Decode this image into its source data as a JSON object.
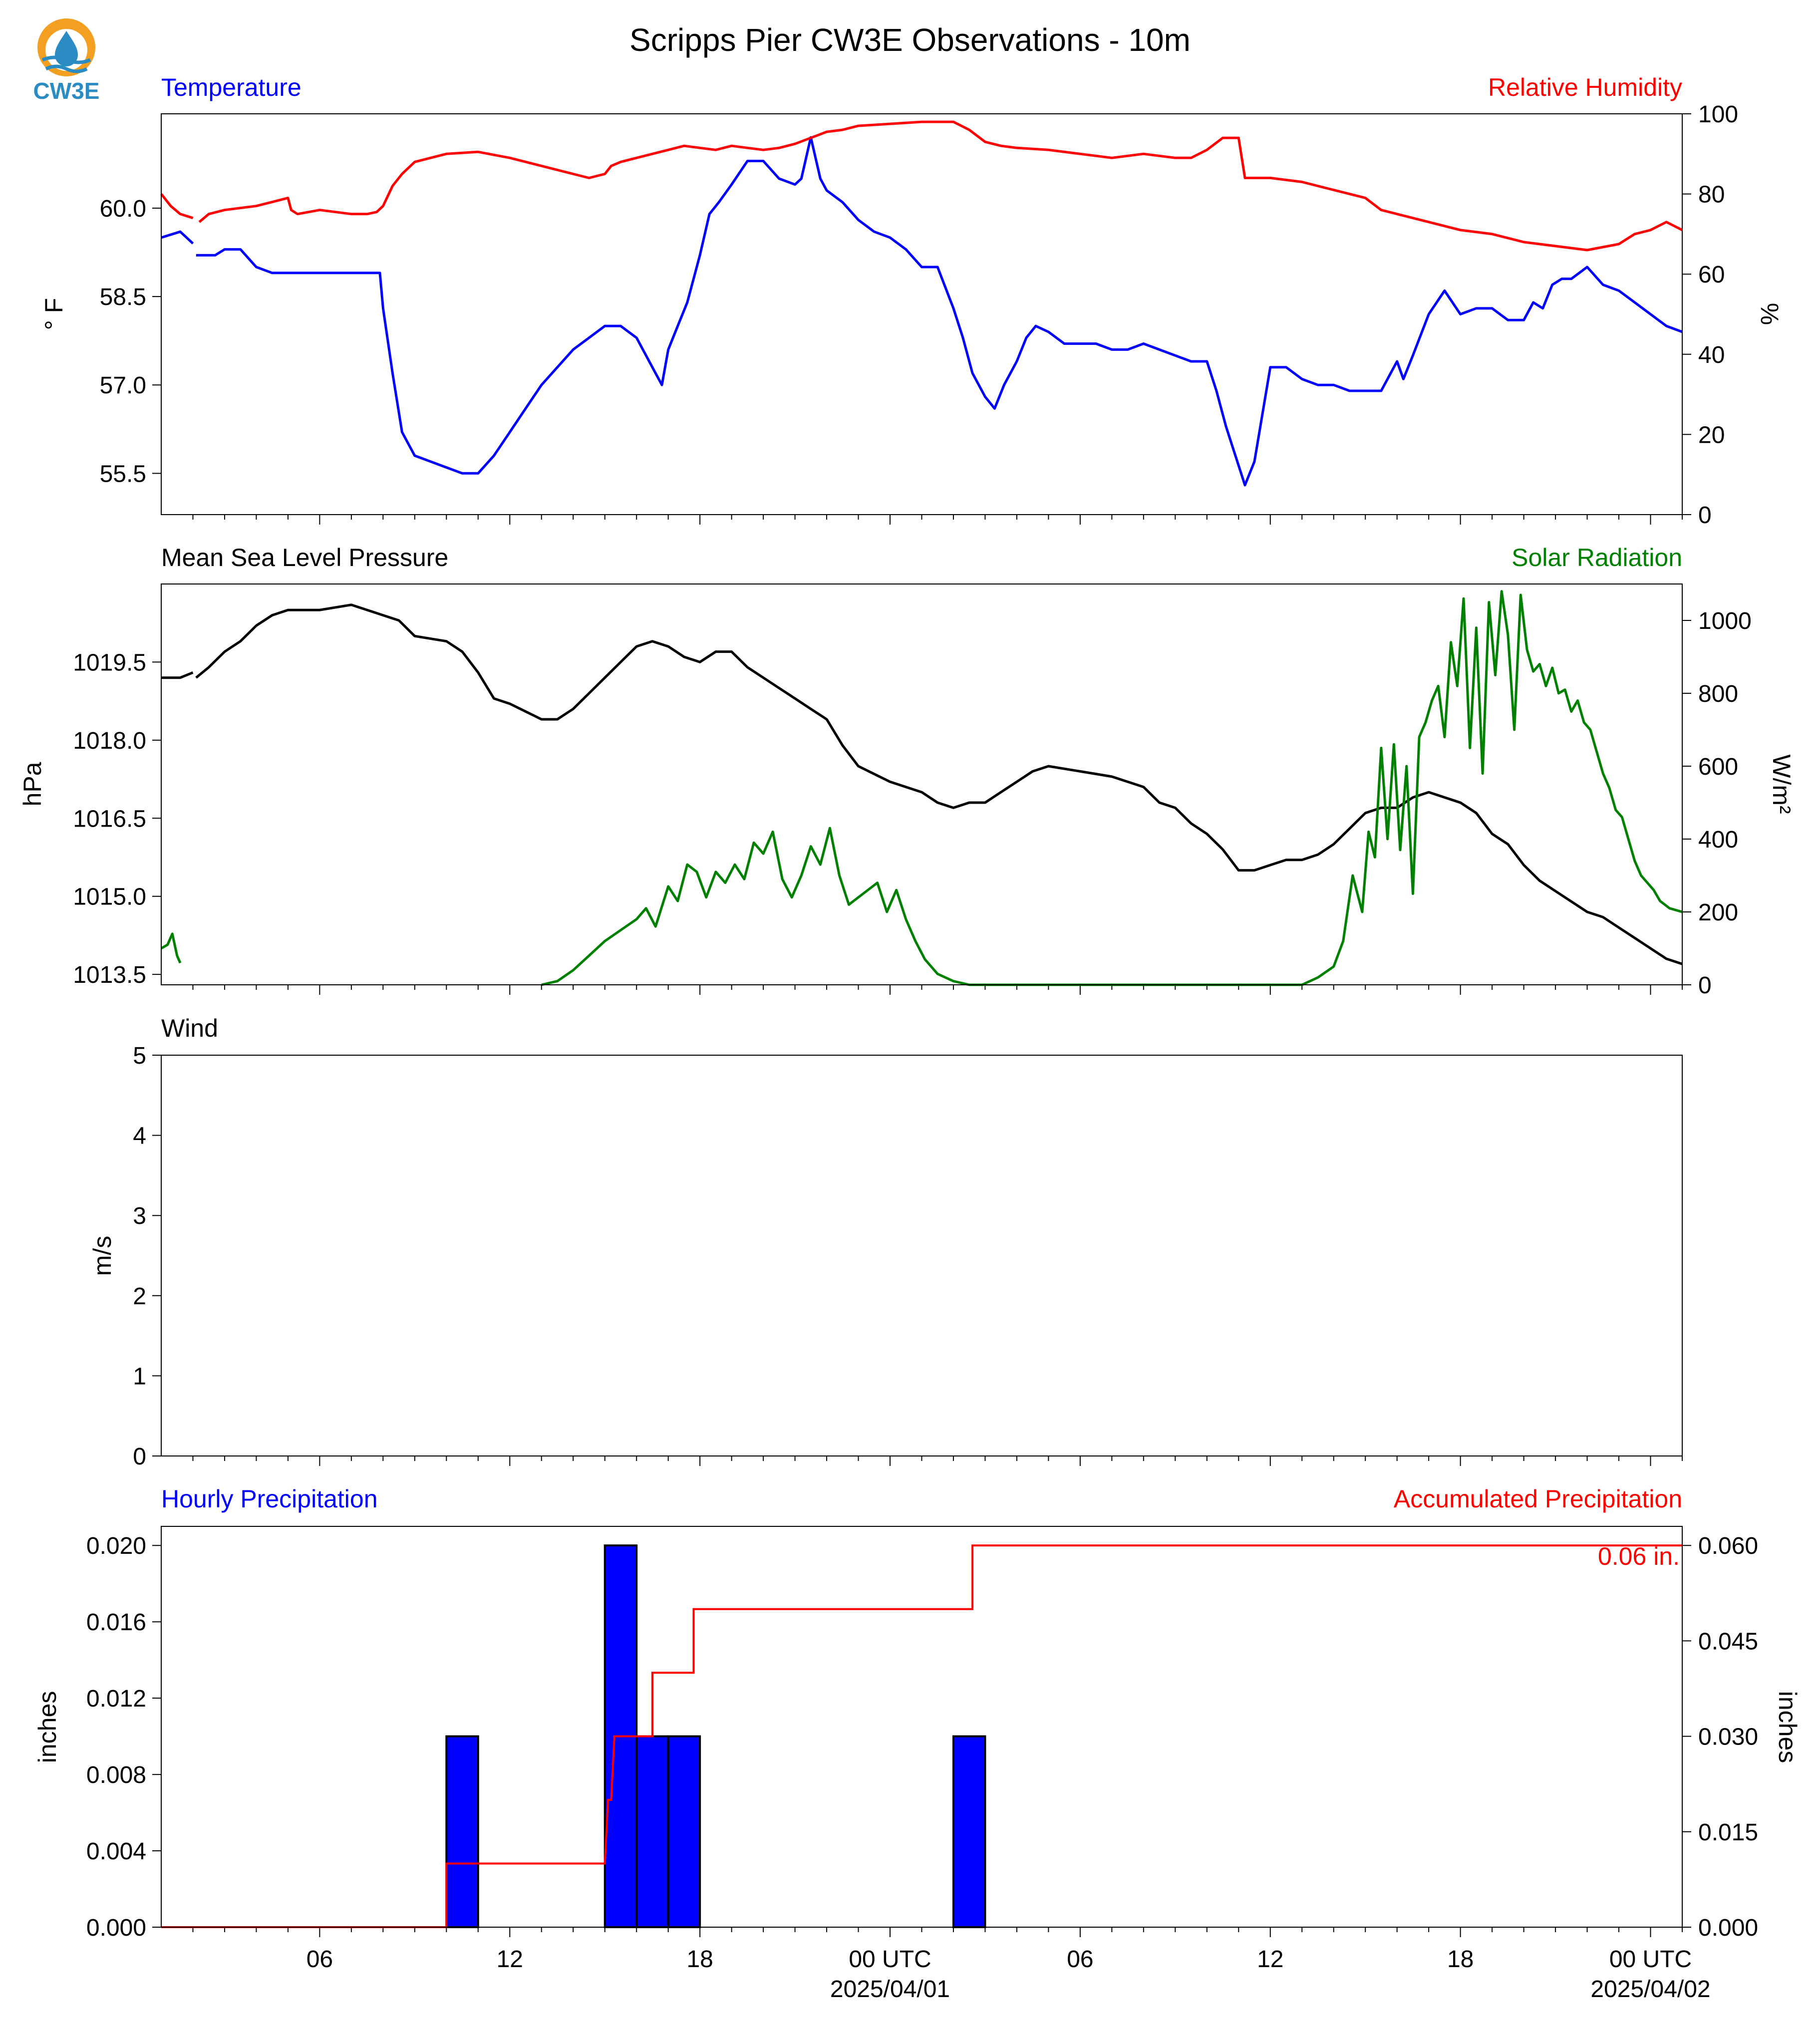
{
  "title": "Scripps Pier CW3E Observations - 10m",
  "logo": {
    "name": "cw3e-logo-icon",
    "text": "CW3E"
  },
  "colors": {
    "blue": "#0000ff",
    "red": "#ff0000",
    "green": "#008000",
    "black": "#000000",
    "logo_orange": "#f3a022",
    "logo_blue": "#2b8cc4"
  },
  "x_axis": {
    "start": "2025-03-31T01:00Z",
    "end": "2025-04-02T01:00Z",
    "tick_labels": [
      "06",
      "12",
      "18",
      "00 UTC",
      "06",
      "12",
      "18",
      "00 UTC"
    ],
    "date_labels": [
      "2025/04/01",
      "2025/04/02"
    ]
  },
  "chart_data": [
    {
      "type": "line",
      "title_left": "Temperature",
      "title_right": "Relative Humidity",
      "ylabel_left": "° F",
      "ylabel_right": "%",
      "ylim_left": [
        54.8,
        61.6
      ],
      "ylim_right": [
        0,
        100
      ],
      "yticks_left": [
        "60.0",
        "58.5",
        "57.0",
        "55.5"
      ],
      "yticks_right": [
        "100",
        "80",
        "60",
        "40",
        "20",
        "0"
      ],
      "series": [
        {
          "name": "Temperature",
          "color": "#0000ff",
          "axis": "left",
          "x": [
            0,
            0.6,
            1.0,
            1.05,
            1.1,
            1.3,
            1.5,
            1.7,
            2.0,
            2.2,
            2.5,
            3.0,
            3.5,
            4.0,
            5.0,
            5.5,
            6.0,
            6.5,
            6.9,
            7.0,
            7.3,
            7.6,
            8.0,
            8.5,
            9.0,
            9.5,
            10.0,
            10.5,
            11.0,
            11.5,
            12.0,
            12.5,
            13.0,
            13.5,
            14.0,
            14.5,
            15.0,
            15.5,
            15.8,
            16.0,
            16.3,
            16.6,
            17.0,
            17.3,
            17.6,
            18.0,
            18.5,
            19.0,
            19.5,
            20.0,
            20.2,
            20.5,
            20.8,
            21.0,
            21.5,
            22.0,
            22.5,
            23.0,
            23.5,
            24.0,
            24.5,
            25.0,
            25.3,
            25.6,
            26.0,
            26.3,
            26.6,
            27.0,
            27.3,
            27.6,
            28.0,
            28.5,
            29.0,
            29.5,
            30.0,
            30.5,
            31.0,
            31.5,
            32.0,
            32.5,
            33.0,
            33.3,
            33.6,
            33.9,
            34.2,
            34.5,
            35.0,
            35.5,
            36.0,
            36.5,
            37.0,
            37.5,
            38.0,
            38.5,
            38.8,
            39.0,
            39.2,
            39.5,
            40.0,
            40.5,
            41.0,
            41.5,
            42.0,
            42.5,
            43.0,
            43.3,
            43.6,
            43.9,
            44.2,
            44.5,
            45.0,
            45.5,
            46.0,
            46.5,
            47.0,
            47.5,
            48.0
          ],
          "values": [
            59.5,
            59.6,
            59.4,
            null,
            59.2,
            59.2,
            59.2,
            59.2,
            59.3,
            59.3,
            59.3,
            59.0,
            58.9,
            58.9,
            58.9,
            58.9,
            58.9,
            58.9,
            58.9,
            58.3,
            57.2,
            56.2,
            55.8,
            55.7,
            55.6,
            55.5,
            55.5,
            55.8,
            56.2,
            56.6,
            57.0,
            57.3,
            57.6,
            57.8,
            58.0,
            58.0,
            57.8,
            57.3,
            57.0,
            57.6,
            58.0,
            58.4,
            59.2,
            59.9,
            60.1,
            60.4,
            60.8,
            60.8,
            60.5,
            60.4,
            60.5,
            61.2,
            60.5,
            60.3,
            60.1,
            59.8,
            59.6,
            59.5,
            59.3,
            59.0,
            59.0,
            58.3,
            57.8,
            57.2,
            56.8,
            56.6,
            57.0,
            57.4,
            57.8,
            58.0,
            57.9,
            57.7,
            57.7,
            57.7,
            57.6,
            57.6,
            57.7,
            57.6,
            57.5,
            57.4,
            57.4,
            56.9,
            56.3,
            55.8,
            55.3,
            55.7,
            57.3,
            57.3,
            57.1,
            57.0,
            57.0,
            56.9,
            56.9,
            56.9,
            57.2,
            57.4,
            57.1,
            57.5,
            58.2,
            58.6,
            58.2,
            58.3,
            58.3,
            58.1,
            58.1,
            58.4,
            58.3,
            58.7,
            58.8,
            58.8,
            59.0,
            58.7,
            58.6,
            58.4,
            58.2,
            58.0,
            57.9
          ]
        },
        {
          "name": "Relative Humidity",
          "color": "#ff0000",
          "axis": "right",
          "x": [
            0,
            0.3,
            0.6,
            1.0,
            1.1,
            1.2,
            1.5,
            2.0,
            3.0,
            3.5,
            4.0,
            4.1,
            4.3,
            5.0,
            6.0,
            6.5,
            6.8,
            7.0,
            7.3,
            7.6,
            8.0,
            8.5,
            9.0,
            10.0,
            11.0,
            12.0,
            13.0,
            13.5,
            14.0,
            14.2,
            14.5,
            15.0,
            15.5,
            16.0,
            16.5,
            17.0,
            17.5,
            18.0,
            18.5,
            19.0,
            19.5,
            20.0,
            20.5,
            21.0,
            21.5,
            22.0,
            23.0,
            24.0,
            25.0,
            25.5,
            26.0,
            26.5,
            27.0,
            28.0,
            29.0,
            30.0,
            31.0,
            32.0,
            32.5,
            33.0,
            33.5,
            34.0,
            34.2,
            34.4,
            35.0,
            36.0,
            37.0,
            37.5,
            38.0,
            38.5,
            39.0,
            39.5,
            40.0,
            41.0,
            42.0,
            43.0,
            44.0,
            45.0,
            46.0,
            46.5,
            47.0,
            47.5,
            48.0
          ],
          "values": [
            80,
            77,
            75,
            74,
            null,
            73,
            75,
            76,
            77,
            78,
            79,
            76,
            75,
            76,
            75,
            75,
            75.5,
            77,
            82,
            85,
            88,
            89,
            90,
            90.5,
            89,
            87,
            85,
            84,
            85,
            87,
            88,
            89,
            90,
            91,
            92,
            91.5,
            91,
            92,
            91.5,
            91,
            91.5,
            92.5,
            94,
            95.5,
            96,
            97,
            97.5,
            98,
            98,
            96,
            93,
            92,
            91.5,
            91,
            90,
            89,
            90,
            89,
            89,
            91,
            94,
            94,
            84,
            84,
            84,
            83,
            81,
            80,
            79,
            76,
            75,
            74,
            73,
            71,
            70,
            68,
            67,
            66,
            67.5,
            70,
            71,
            73,
            71
          ]
        }
      ]
    },
    {
      "type": "line",
      "title_left": "Mean Sea Level Pressure",
      "title_right": "Solar Radiation",
      "ylabel_left": "hPa",
      "ylabel_right": "W/m²",
      "ylim_left": [
        1013.3,
        1021.0
      ],
      "ylim_right": [
        0,
        1100
      ],
      "yticks_left": [
        "1019.5",
        "1018.0",
        "1016.5",
        "1015.0",
        "1013.5"
      ],
      "yticks_right": [
        "1000",
        "800",
        "600",
        "400",
        "200",
        "0"
      ],
      "series": [
        {
          "name": "Mean Sea Level Pressure",
          "color": "#000000",
          "axis": "left",
          "x": [
            0,
            0.6,
            1.0,
            1.05,
            1.1,
            1.5,
            2.0,
            2.5,
            3.0,
            3.5,
            4.0,
            5.0,
            6.0,
            7.0,
            7.5,
            8.0,
            9.0,
            9.5,
            10.0,
            10.5,
            11.0,
            12.0,
            12.5,
            13.0,
            13.5,
            14.0,
            14.5,
            15.0,
            15.5,
            16.0,
            16.5,
            17.0,
            17.5,
            18.0,
            18.5,
            19.0,
            19.5,
            20.0,
            20.5,
            21.0,
            21.5,
            22.0,
            23.0,
            24.0,
            24.5,
            25.0,
            25.5,
            26.0,
            26.5,
            27.0,
            27.5,
            28.0,
            29.0,
            30.0,
            30.5,
            31.0,
            31.5,
            32.0,
            32.5,
            33.0,
            33.5,
            34.0,
            34.5,
            35.0,
            35.5,
            36.0,
            36.5,
            37.0,
            37.5,
            38.0,
            38.5,
            39.0,
            39.5,
            40.0,
            41.0,
            41.5,
            42.0,
            42.5,
            43.0,
            43.5,
            44.0,
            44.5,
            45.0,
            45.5,
            46.0,
            46.5,
            47.0,
            47.5,
            48.0
          ],
          "values": [
            1019.2,
            1019.2,
            1019.3,
            null,
            1019.2,
            1019.4,
            1019.7,
            1019.9,
            1020.2,
            1020.4,
            1020.5,
            1020.5,
            1020.6,
            1020.4,
            1020.3,
            1020.0,
            1019.9,
            1019.7,
            1019.3,
            1018.8,
            1018.7,
            1018.4,
            1018.4,
            1018.6,
            1018.9,
            1019.2,
            1019.5,
            1019.8,
            1019.9,
            1019.8,
            1019.6,
            1019.5,
            1019.7,
            1019.7,
            1019.4,
            1019.2,
            1019.0,
            1018.8,
            1018.6,
            1018.4,
            1017.9,
            1017.5,
            1017.2,
            1017.0,
            1016.8,
            1016.7,
            1016.8,
            1016.8,
            1017.0,
            1017.2,
            1017.4,
            1017.5,
            1017.4,
            1017.3,
            1017.2,
            1017.1,
            1016.8,
            1016.7,
            1016.4,
            1016.2,
            1015.9,
            1015.5,
            1015.5,
            1015.6,
            1015.7,
            1015.7,
            1015.8,
            1016.0,
            1016.3,
            1016.6,
            1016.7,
            1016.7,
            1016.9,
            1017.0,
            1016.8,
            1016.6,
            1016.2,
            1016.0,
            1015.6,
            1015.3,
            1015.1,
            1014.9,
            1014.7,
            1014.6,
            1014.4,
            1014.2,
            1014.0,
            1013.8,
            1013.7
          ]
        },
        {
          "name": "Solar Radiation",
          "color": "#008000",
          "axis": "right",
          "x": [
            0,
            0.2,
            0.35,
            0.5,
            0.6,
            1.0,
            12.0,
            12.5,
            13.0,
            13.5,
            14.0,
            14.5,
            15.0,
            15.3,
            15.6,
            16.0,
            16.3,
            16.6,
            16.9,
            17.2,
            17.5,
            17.8,
            18.1,
            18.4,
            18.7,
            19.0,
            19.3,
            19.6,
            19.9,
            20.2,
            20.5,
            20.8,
            21.1,
            21.4,
            21.7,
            22.0,
            22.3,
            22.6,
            22.9,
            23.2,
            23.5,
            23.8,
            24.1,
            24.5,
            25.0,
            25.5,
            36.0,
            36.5,
            37.0,
            37.3,
            37.6,
            37.9,
            38.1,
            38.3,
            38.5,
            38.7,
            38.9,
            39.1,
            39.3,
            39.5,
            39.7,
            39.9,
            40.1,
            40.3,
            40.5,
            40.7,
            40.9,
            41.1,
            41.3,
            41.5,
            41.7,
            41.9,
            42.1,
            42.3,
            42.5,
            42.7,
            42.9,
            43.1,
            43.3,
            43.5,
            43.7,
            43.9,
            44.1,
            44.3,
            44.5,
            44.7,
            44.9,
            45.1,
            45.3,
            45.5,
            45.7,
            45.9,
            46.1,
            46.3,
            46.5,
            46.7,
            46.9,
            47.1,
            47.3,
            47.6,
            48.0
          ],
          "values": [
            100,
            110,
            140,
            80,
            60,
            null,
            0,
            10,
            40,
            80,
            120,
            150,
            180,
            210,
            160,
            270,
            230,
            330,
            310,
            240,
            310,
            280,
            330,
            290,
            390,
            360,
            420,
            290,
            240,
            300,
            380,
            330,
            430,
            300,
            220,
            240,
            260,
            280,
            200,
            260,
            180,
            120,
            70,
            30,
            10,
            0,
            0,
            20,
            50,
            120,
            300,
            200,
            420,
            350,
            650,
            400,
            660,
            370,
            600,
            250,
            680,
            720,
            780,
            820,
            680,
            940,
            820,
            1060,
            650,
            980,
            580,
            1050,
            850,
            1080,
            960,
            700,
            1070,
            920,
            860,
            880,
            820,
            870,
            800,
            810,
            750,
            780,
            720,
            700,
            640,
            580,
            540,
            480,
            460,
            400,
            340,
            300,
            280,
            260,
            230,
            210,
            200
          ]
        }
      ]
    },
    {
      "type": "line",
      "title_left": "Wind",
      "ylabel_left": "m/s",
      "ylim_left": [
        0,
        5
      ],
      "yticks_left": [
        "5",
        "4",
        "3",
        "2",
        "1",
        "0"
      ],
      "series": []
    },
    {
      "type": "bar",
      "title_left": "Hourly Precipitation",
      "title_right": "Accumulated Precipitation",
      "ylabel_left": "inches",
      "ylabel_right": "inches",
      "ylim_left": [
        0,
        0.021
      ],
      "ylim_right": [
        0,
        0.063
      ],
      "yticks_left": [
        "0.020",
        "0.016",
        "0.012",
        "0.008",
        "0.004",
        "0.000"
      ],
      "yticks_right": [
        "0.060",
        "0.045",
        "0.030",
        "0.015",
        "0.000"
      ],
      "total_label": "0.06 in.",
      "bars": {
        "name": "Hourly Precipitation",
        "color": "#0000ff",
        "x_start": [
          9.0,
          14.0,
          15.0,
          16.0,
          25.0
        ],
        "width": 1.0,
        "values": [
          0.01,
          0.02,
          0.01,
          0.01,
          0.01
        ]
      },
      "accumulated": {
        "name": "Accumulated Precipitation",
        "color": "#ff0000",
        "x": [
          0,
          9.0,
          9.0,
          14.0,
          14.1,
          14.2,
          14.3,
          14.3,
          15.5,
          15.5,
          16.8,
          16.8,
          25.6,
          25.6,
          48.0
        ],
        "values": [
          0,
          0,
          0.01,
          0.01,
          0.02,
          0.02,
          0.03,
          0.03,
          0.03,
          0.04,
          0.04,
          0.05,
          0.05,
          0.06,
          0.06
        ]
      }
    }
  ]
}
